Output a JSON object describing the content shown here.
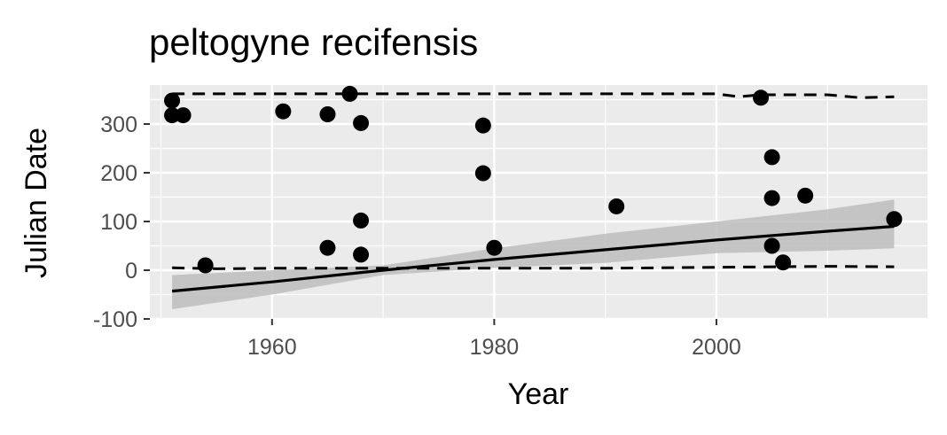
{
  "chart_data": {
    "type": "scatter",
    "title": "peltogyne recifensis",
    "xlabel": "Year",
    "ylabel": "Julian Date",
    "xlim": [
      1949,
      2019
    ],
    "ylim": [
      -100,
      380
    ],
    "x_ticks": [
      1960,
      1980,
      2000
    ],
    "y_ticks": [
      -100,
      0,
      100,
      200,
      300
    ],
    "x_tick_labels": [
      "1960",
      "1980",
      "2000"
    ],
    "y_tick_labels": [
      "-100",
      "0",
      "100",
      "200",
      "300"
    ],
    "grid": true,
    "background": "#ebebeb",
    "points": [
      {
        "x": 1951,
        "y": 348
      },
      {
        "x": 1951,
        "y": 318
      },
      {
        "x": 1952,
        "y": 318
      },
      {
        "x": 1954,
        "y": 10
      },
      {
        "x": 1961,
        "y": 326
      },
      {
        "x": 1965,
        "y": 320
      },
      {
        "x": 1965,
        "y": 46
      },
      {
        "x": 1967,
        "y": 362
      },
      {
        "x": 1968,
        "y": 302
      },
      {
        "x": 1968,
        "y": 102
      },
      {
        "x": 1968,
        "y": 32
      },
      {
        "x": 1979,
        "y": 297
      },
      {
        "x": 1979,
        "y": 199
      },
      {
        "x": 1980,
        "y": 46
      },
      {
        "x": 1991,
        "y": 131
      },
      {
        "x": 2004,
        "y": 354
      },
      {
        "x": 2005,
        "y": 232
      },
      {
        "x": 2005,
        "y": 148
      },
      {
        "x": 2005,
        "y": 50
      },
      {
        "x": 2006,
        "y": 16
      },
      {
        "x": 2008,
        "y": 153
      },
      {
        "x": 2016,
        "y": 105
      }
    ],
    "trend_line": {
      "x": [
        1951,
        1960,
        1970,
        1980,
        1990,
        2000,
        2010,
        2016
      ],
      "y": [
        -43,
        -24,
        0,
        22,
        42,
        62,
        80,
        90
      ]
    },
    "confidence_band": {
      "x": [
        1951,
        1960,
        1970,
        1980,
        1990,
        2000,
        2010,
        2016
      ],
      "upper": [
        -10,
        0,
        10,
        45,
        75,
        100,
        125,
        145
      ],
      "lower": [
        -80,
        -50,
        -10,
        5,
        15,
        35,
        40,
        45
      ]
    },
    "upper_dashed": {
      "x": [
        1951,
        1960,
        1970,
        1980,
        1990,
        2000,
        2002,
        2004,
        2010,
        2013,
        2016
      ],
      "y": [
        362,
        362,
        362,
        362,
        362,
        362,
        356,
        360,
        360,
        354,
        356
      ]
    },
    "lower_dashed": {
      "x": [
        1951,
        1955,
        1960,
        1970,
        1980,
        1990,
        2000,
        2010,
        2016
      ],
      "y": [
        5,
        3,
        4,
        4,
        4,
        4,
        6,
        8,
        7
      ]
    },
    "colors": {
      "points": "#000000",
      "trend": "#000000",
      "band": "#bdbdbd",
      "grid": "#ffffff"
    }
  }
}
